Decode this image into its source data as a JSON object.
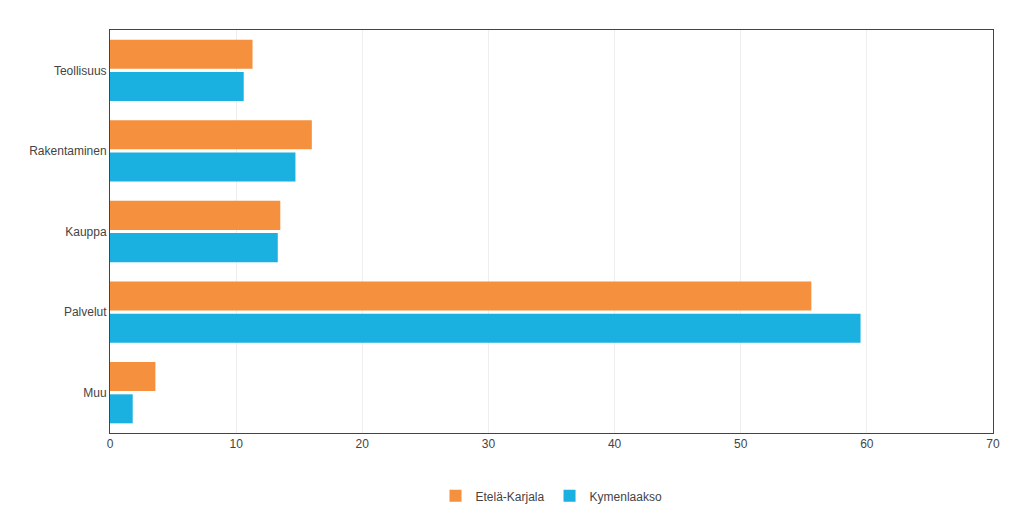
{
  "chart_data": {
    "type": "bar",
    "orientation": "horizontal",
    "categories": [
      "Teollisuus",
      "Rakentaminen",
      "Kauppa",
      "Palvelut",
      "Muu"
    ],
    "series": [
      {
        "name": "Etelä-Karjala",
        "color": "#f4903e",
        "values": [
          11.3,
          16.0,
          13.5,
          55.6,
          3.6
        ]
      },
      {
        "name": "Kymenlaakso",
        "color": "#1ab0e0",
        "values": [
          10.6,
          14.7,
          13.3,
          59.5,
          1.8
        ]
      }
    ],
    "xlim": [
      0,
      70
    ],
    "xticks": [
      0,
      10,
      20,
      30,
      40,
      50,
      60,
      70
    ],
    "grid": true,
    "legend": "bottom"
  }
}
